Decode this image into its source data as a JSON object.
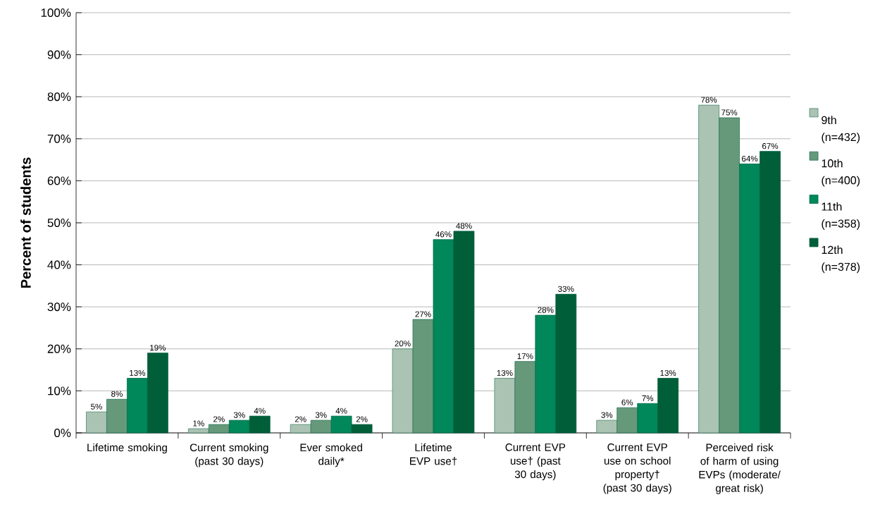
{
  "chart_data": {
    "type": "bar",
    "ylabel": "Percent of students",
    "categories": [
      "Lifetime smoking",
      "Current smoking (past 30 days)",
      "Ever smoked daily*",
      "Lifetime EVP use†",
      "Current EVP use† (past 30 days)",
      "Current EVP use on school property† (past 30 days)",
      "Perceived risk of harm of using EVPs (moderate/ great risk)"
    ],
    "series": [
      {
        "name": "9th (n=432)",
        "color": "#abc3b3",
        "values": [
          5,
          1,
          2,
          20,
          13,
          3,
          78
        ],
        "value_labels": [
          "5%",
          "1%",
          "2%",
          "20%",
          "13%",
          "3%",
          "78%"
        ]
      },
      {
        "name": "10th (n=400)",
        "color": "#66997a",
        "values": [
          8,
          2,
          3,
          27,
          17,
          6,
          75
        ],
        "value_labels": [
          "8%",
          "2%",
          "3%",
          "27%",
          "17%",
          "6%",
          "75%"
        ]
      },
      {
        "name": "11th (n=358)",
        "color": "#00875a",
        "values": [
          13,
          3,
          4,
          46,
          28,
          7,
          64
        ],
        "value_labels": [
          "13%",
          "3%",
          "4%",
          "46%",
          "28%",
          "7%",
          "64%"
        ]
      },
      {
        "name": "12th (n=378)",
        "color": "#005e38",
        "values": [
          19,
          4,
          2,
          48,
          33,
          13,
          67
        ],
        "value_labels": [
          "19%",
          "4%",
          "2%",
          "48%",
          "33%",
          "13%",
          "67%"
        ]
      }
    ],
    "ylim": [
      0,
      100
    ],
    "yticks": [
      {
        "value": 0,
        "label": "0%"
      },
      {
        "value": 10,
        "label": "10%"
      },
      {
        "value": 20,
        "label": "20%"
      },
      {
        "value": 30,
        "label": "30%"
      },
      {
        "value": 40,
        "label": "40%"
      },
      {
        "value": 50,
        "label": "50%"
      },
      {
        "value": 60,
        "label": "60%"
      },
      {
        "value": 70,
        "label": "70%"
      },
      {
        "value": 80,
        "label": "80%"
      },
      {
        "value": 90,
        "label": "90%"
      },
      {
        "value": 100,
        "label": "100%"
      }
    ],
    "grid": "y",
    "legend": "right"
  }
}
